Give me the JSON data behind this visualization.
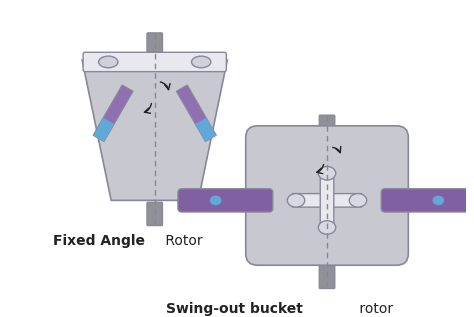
{
  "bg_color": "#ffffff",
  "rotor_body_color": "#c8c8d0",
  "rotor_stroke_color": "#888898",
  "tube_purple": "#8060a0",
  "tube_light_purple": "#b090c8",
  "tube_blue": "#60a8d8",
  "tube_white": "#e8e8f0",
  "shaft_color": "#909098",
  "arrow_color": "#222222",
  "label1_bold": "Fixed Angle",
  "label1_normal": " Rotor",
  "label2_bold": "Swing-out bucket",
  "label2_normal": " rotor",
  "font_size_label": 10,
  "dashed_color": "#888888"
}
